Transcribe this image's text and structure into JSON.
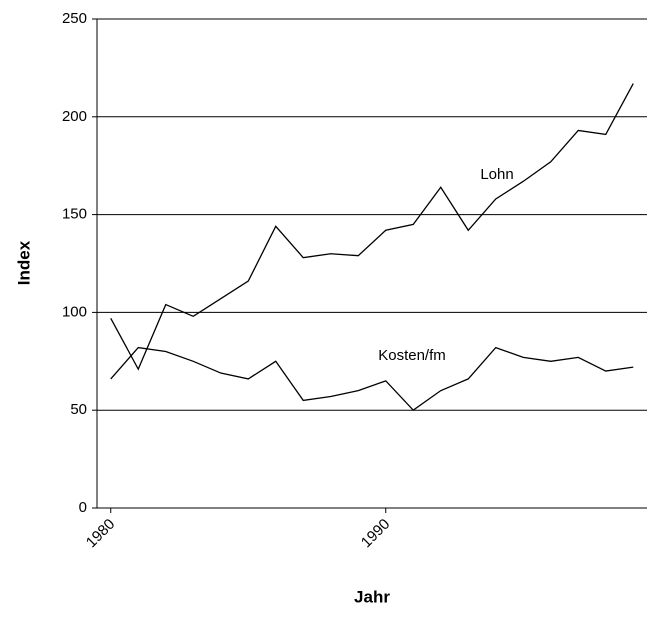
{
  "chart_data": {
    "type": "line",
    "x_label": "Jahr",
    "y_label": "Index",
    "x": [
      1980,
      1981,
      1982,
      1983,
      1984,
      1985,
      1986,
      1987,
      1988,
      1989,
      1990,
      1991,
      1992,
      1993,
      1994,
      1995,
      1996,
      1997,
      1998,
      1999
    ],
    "series": [
      {
        "name": "Lohn",
        "color": "#000000",
        "values": [
          97,
          71,
          104,
          98,
          107,
          116,
          144,
          128,
          130,
          129,
          142,
          145,
          164,
          142,
          158,
          167,
          177,
          193,
          191,
          217
        ]
      },
      {
        "name": "Kosten/fm",
        "color": "#000000",
        "values": [
          66,
          82,
          80,
          75,
          69,
          66,
          75,
          55,
          57,
          60,
          65,
          50,
          60,
          66,
          82,
          77,
          75,
          77,
          70,
          72
        ]
      }
    ],
    "xlim": [
      1979.5,
      1999.5
    ],
    "xticks": [
      1980,
      1990
    ],
    "ylim": [
      0,
      250
    ],
    "yticks": [
      0,
      50,
      100,
      150,
      200,
      250
    ],
    "grid": true
  }
}
